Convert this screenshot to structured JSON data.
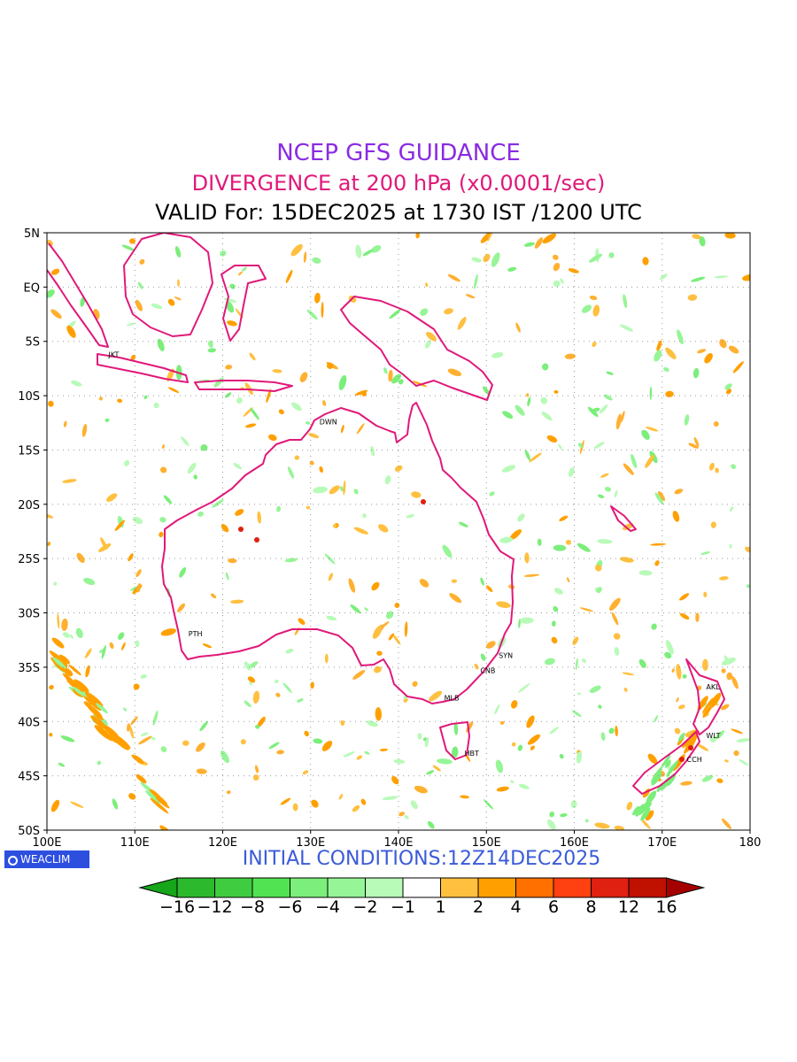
{
  "header": {
    "title": "NCEP GFS GUIDANCE",
    "subtitle": "DIVERGENCE at 200 hPa (x0.0001/sec)",
    "valid_line": "VALID For: 15DEC2025 at 1730 IST /1200 UTC"
  },
  "footer": {
    "initial_conditions": "INITIAL CONDITIONS:12Z14DEC2025",
    "logo_text": "WEACLIM"
  },
  "map": {
    "lat_labels": [
      "5N",
      "EQ",
      "5S",
      "10S",
      "15S",
      "20S",
      "25S",
      "30S",
      "35S",
      "40S",
      "45S",
      "50S"
    ],
    "lon_labels": [
      "100E",
      "110E",
      "120E",
      "130E",
      "140E",
      "150E",
      "160E",
      "170E",
      "180"
    ],
    "cities": [
      {
        "code": "JKT",
        "lon": 106.8,
        "lat": -6.2
      },
      {
        "code": "DWN",
        "lon": 130.8,
        "lat": -12.4
      },
      {
        "code": "PTH",
        "lon": 115.9,
        "lat": -31.9
      },
      {
        "code": "SYN",
        "lon": 151.2,
        "lat": -33.9
      },
      {
        "code": "CNB",
        "lon": 149.1,
        "lat": -35.3
      },
      {
        "code": "MLB",
        "lon": 145.0,
        "lat": -37.8
      },
      {
        "code": "HBT",
        "lon": 147.3,
        "lat": -42.9
      },
      {
        "code": "AKL",
        "lon": 174.8,
        "lat": -36.8
      },
      {
        "code": "WLT",
        "lon": 174.8,
        "lat": -41.3
      },
      {
        "code": "CCH",
        "lon": 172.6,
        "lat": -43.5
      }
    ]
  },
  "colorbar": {
    "labels": [
      "−16",
      "−12",
      "−8",
      "−6",
      "−4",
      "−2",
      "−1",
      "1",
      "2",
      "4",
      "6",
      "8",
      "12",
      "16"
    ],
    "colors": [
      "#17a51a",
      "#2cb92d",
      "#40cc40",
      "#52e352",
      "#7bee7b",
      "#96f596",
      "#b8fab8",
      "#ffffff",
      "#ffc040",
      "#ffa000",
      "#ff7000",
      "#ff4010",
      "#e02010",
      "#c01000",
      "#a50000"
    ]
  },
  "colors": {
    "coastline": "#e0197a",
    "title": "#8a2be2",
    "subtitle": "#e0197a",
    "initial": "#3b5bd9"
  }
}
